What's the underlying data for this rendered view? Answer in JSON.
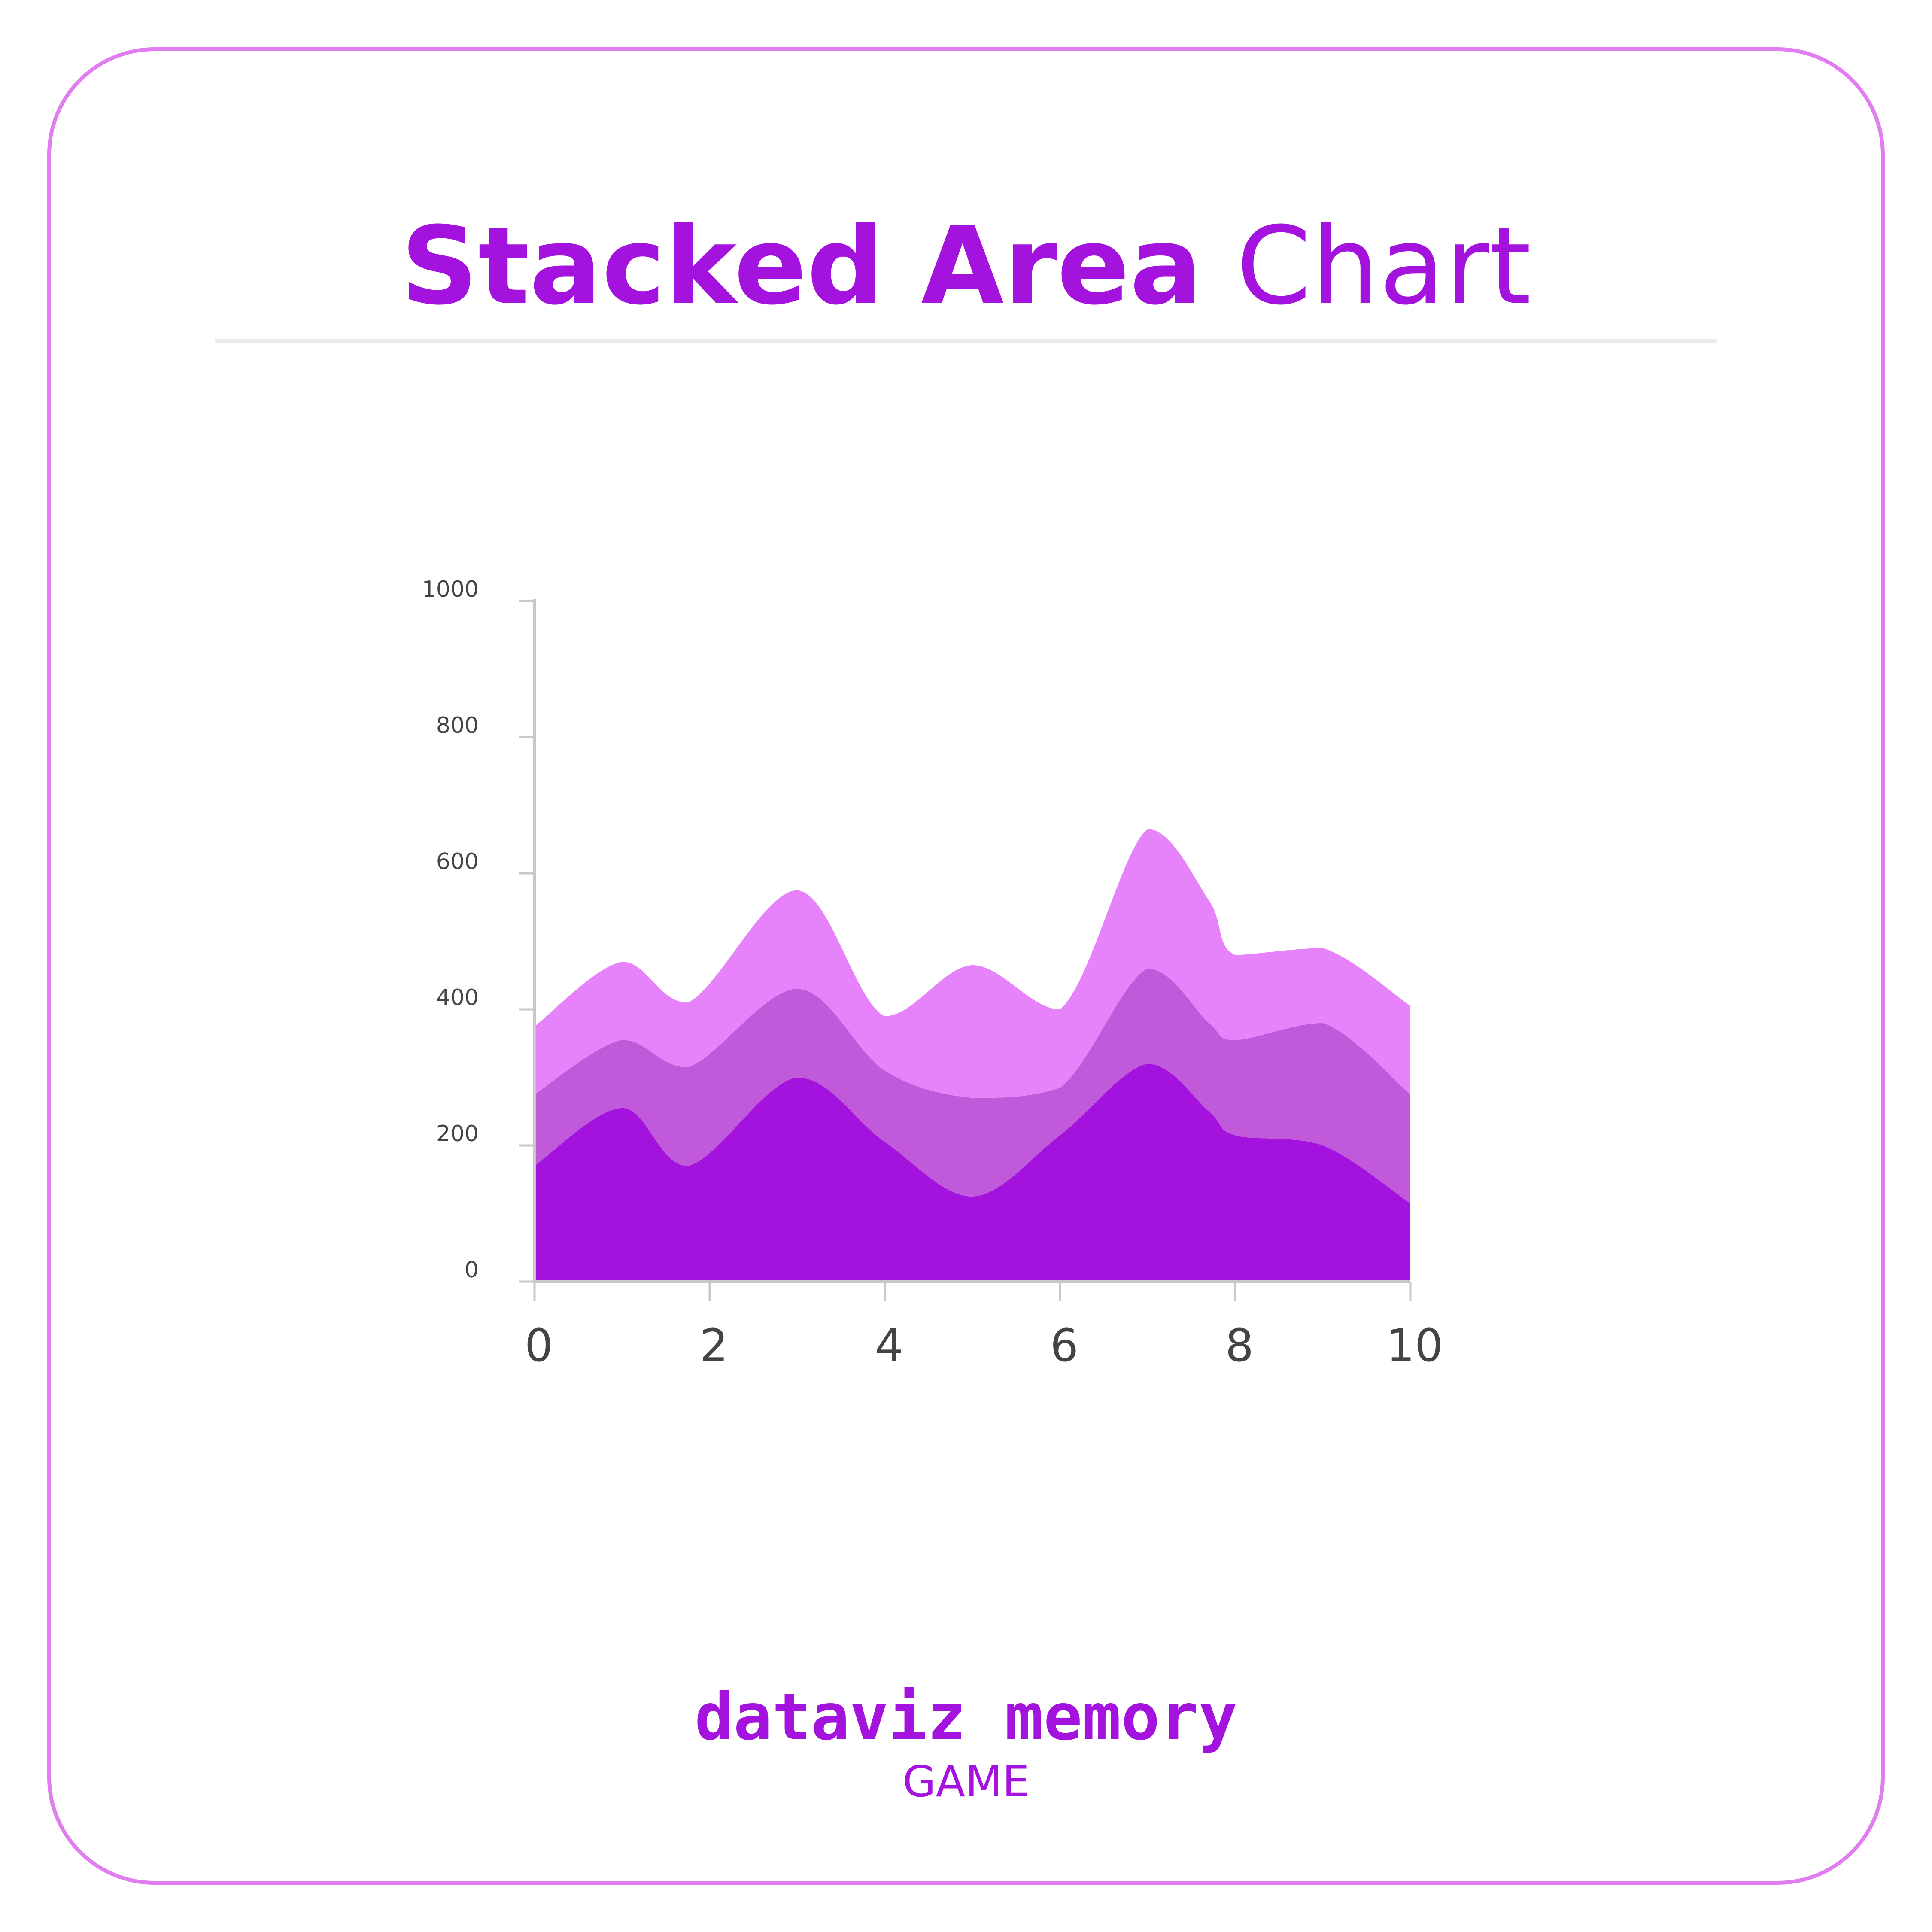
{
  "title": {
    "bold": "Stacked Area",
    "light": "Chart"
  },
  "footer": {
    "brand": "dataviz memory",
    "sub": "GAME"
  },
  "colors": {
    "accent": "#a412de",
    "border": "#e07ef0",
    "divider": "#ebebeb",
    "axis": "#c8c8c8",
    "tick_text": "#444444"
  },
  "chart_data": {
    "type": "area",
    "stacked": true,
    "x": [
      0,
      1,
      1.75,
      3,
      4,
      5,
      6,
      7,
      7.7,
      8,
      9,
      10
    ],
    "series": [
      {
        "values": [
          170,
          255,
          170,
          300,
          205,
          125,
          215,
          320,
          250,
          215,
          200,
          115
        ],
        "color": "#a412de"
      },
      {
        "values": [
          105,
          100,
          145,
          130,
          105,
          145,
          70,
          140,
          130,
          140,
          180,
          160
        ],
        "color": "#c059da"
      },
      {
        "values": [
          100,
          115,
          95,
          145,
          80,
          195,
          115,
          205,
          180,
          125,
          110,
          130
        ],
        "color": "#e783fa"
      }
    ],
    "xlim": [
      0,
      10
    ],
    "ylim": [
      0,
      1000
    ],
    "xticks": [
      "0",
      "2",
      "4",
      "6",
      "8",
      "10"
    ],
    "yticks": [
      "0",
      "200",
      "400",
      "600",
      "800",
      "1000"
    ],
    "grid": false,
    "legend": "none"
  }
}
